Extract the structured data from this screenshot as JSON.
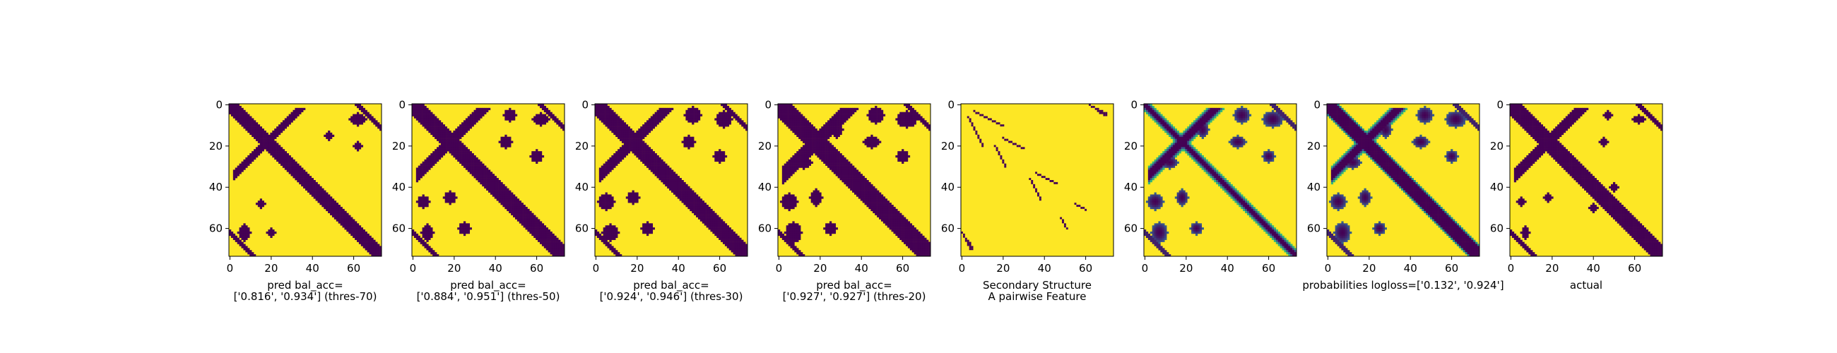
{
  "colors": {
    "background": "#ffffff",
    "present": "#fde725",
    "absent": "#440154",
    "mid_green": "#35b779",
    "mid_teal": "#21918c",
    "mid_blue": "#3b528b"
  },
  "chart_data": [
    {
      "type": "heatmap",
      "matrix_size": 74,
      "xticks": [
        0,
        20,
        40,
        60
      ],
      "yticks": [
        0,
        20,
        40,
        60
      ],
      "xlabel_lines": [
        "pred bal_acc=",
        "['0.816', '0.934'] (thres-70)"
      ],
      "style": "binary",
      "diag_width": 3.5,
      "bands": [
        {
          "o": 36,
          "s": 2,
          "e": 38,
          "w": 1.5
        }
      ],
      "blobs": [
        [
          7,
          62,
          3,
          4
        ],
        [
          62,
          7,
          4,
          3
        ],
        [
          48,
          15,
          2,
          2
        ],
        [
          15,
          48,
          2,
          2
        ],
        [
          20,
          62,
          2,
          2
        ],
        [
          62,
          20,
          2,
          2
        ]
      ],
      "side_diag": [
        10,
        30
      ]
    },
    {
      "type": "heatmap",
      "matrix_size": 74,
      "xticks": [
        0,
        20,
        40,
        60
      ],
      "yticks": [
        0,
        20,
        40,
        60
      ],
      "xlabel_lines": [
        "pred bal_acc=",
        "['0.884', '0.951'] (thres-50)"
      ],
      "style": "binary",
      "diag_width": 4,
      "bands": [
        {
          "o": 36,
          "s": 2,
          "e": 38,
          "w": 2
        },
        {
          "o": 54,
          "s": 2,
          "e": 20,
          "w": 1.8
        }
      ],
      "blobs": [
        [
          7,
          62,
          3,
          4
        ],
        [
          62,
          7,
          4,
          3
        ],
        [
          45,
          18,
          3,
          3
        ],
        [
          18,
          45,
          3,
          3
        ],
        [
          47,
          5,
          3,
          3
        ],
        [
          5,
          47,
          3,
          3
        ],
        [
          60,
          25,
          3,
          3
        ],
        [
          25,
          60,
          3,
          3
        ]
      ],
      "side_diag": [
        10,
        35
      ]
    },
    {
      "type": "heatmap",
      "matrix_size": 74,
      "xticks": [
        0,
        20,
        40,
        60
      ],
      "yticks": [
        0,
        20,
        40,
        60
      ],
      "xlabel_lines": [
        "pred bal_acc=",
        "['0.924', '0.946'] (thres-30)"
      ],
      "style": "binary",
      "diag_width": 4.5,
      "bands": [
        {
          "o": 36,
          "s": 2,
          "e": 38,
          "w": 2.5
        },
        {
          "o": 54,
          "s": 2,
          "e": 20,
          "w": 2.2
        },
        {
          "o": 70,
          "s": 2,
          "e": 5,
          "w": 1.5
        }
      ],
      "blobs": [
        [
          7,
          62,
          4,
          4
        ],
        [
          62,
          7,
          4,
          4
        ],
        [
          45,
          18,
          3,
          3
        ],
        [
          18,
          45,
          3,
          3
        ],
        [
          47,
          5,
          4,
          4
        ],
        [
          5,
          47,
          4,
          4
        ],
        [
          60,
          25,
          3,
          3
        ],
        [
          25,
          60,
          3,
          3
        ]
      ],
      "side_diag": [
        10,
        40
      ]
    },
    {
      "type": "heatmap",
      "matrix_size": 74,
      "xticks": [
        0,
        20,
        40,
        60
      ],
      "yticks": [
        0,
        20,
        40,
        60
      ],
      "xlabel_lines": [
        "pred bal_acc=",
        "['0.927', '0.927'] (thres-20)"
      ],
      "style": "binary",
      "diag_width": 5,
      "bands": [
        {
          "o": 36,
          "s": 2,
          "e": 38,
          "w": 3
        },
        {
          "o": 54,
          "s": 2,
          "e": 20,
          "w": 2.6
        },
        {
          "o": 70,
          "s": 2,
          "e": 5,
          "w": 2
        }
      ],
      "blobs": [
        [
          7,
          62,
          4,
          5
        ],
        [
          62,
          7,
          5,
          4
        ],
        [
          45,
          18,
          4,
          3
        ],
        [
          18,
          45,
          3,
          4
        ],
        [
          47,
          5,
          4,
          4
        ],
        [
          5,
          47,
          4,
          4
        ],
        [
          60,
          25,
          3,
          3
        ],
        [
          25,
          60,
          3,
          3
        ],
        [
          12,
          28,
          4,
          3
        ],
        [
          28,
          12,
          3,
          4
        ]
      ],
      "side_diag": [
        8,
        45
      ]
    },
    {
      "type": "heatmap",
      "matrix_size": 74,
      "xticks": [
        0,
        20,
        40,
        60
      ],
      "yticks": [
        0,
        20,
        40,
        60
      ],
      "xlabel_lines": [
        "Secondary Structure",
        "A pairwise Feature"
      ],
      "style": "ss",
      "segments": [
        [
          6,
          20,
          3,
          4
        ],
        [
          66,
          70,
          3,
          4
        ],
        [
          20,
          30,
          16,
          19
        ],
        [
          36,
          46,
          33,
          42
        ],
        [
          55,
          60,
          48,
          51
        ],
        [
          62,
          70,
          0,
          6
        ]
      ]
    },
    {
      "type": "heatmap",
      "matrix_size": 74,
      "xticks": [
        0,
        20,
        40,
        60
      ],
      "yticks": [
        0,
        20,
        40,
        60
      ],
      "xlabel_lines": [
        "",
        ""
      ],
      "style": "continuous",
      "diag_width": 1.5,
      "bands": [
        {
          "o": 36,
          "s": 2,
          "e": 38,
          "w": 2.5
        },
        {
          "o": 54,
          "s": 2,
          "e": 20,
          "w": 2.2
        },
        {
          "o": 70,
          "s": 2,
          "e": 5,
          "w": 2
        }
      ],
      "blobs": [
        [
          7,
          62,
          4,
          5
        ],
        [
          62,
          7,
          5,
          4
        ],
        [
          45,
          18,
          4,
          3
        ],
        [
          18,
          45,
          3,
          4
        ],
        [
          47,
          5,
          4,
          4
        ],
        [
          5,
          47,
          4,
          4
        ],
        [
          60,
          25,
          3,
          3
        ],
        [
          25,
          60,
          3,
          3
        ],
        [
          12,
          28,
          4,
          3
        ],
        [
          28,
          12,
          3,
          4
        ]
      ],
      "side_diag": [
        10,
        40
      ]
    },
    {
      "type": "heatmap",
      "matrix_size": 74,
      "xticks": [
        0,
        20,
        40,
        60
      ],
      "yticks": [
        0,
        20,
        40,
        60
      ],
      "xlabel_lines": [
        "probabilities logloss=['0.132', '0.924']",
        ""
      ],
      "style": "continuous",
      "diag_width": 4,
      "bands": [
        {
          "o": 36,
          "s": 2,
          "e": 38,
          "w": 2.5
        },
        {
          "o": 54,
          "s": 2,
          "e": 20,
          "w": 2.2
        },
        {
          "o": 70,
          "s": 2,
          "e": 5,
          "w": 2
        }
      ],
      "blobs": [
        [
          7,
          62,
          4,
          5
        ],
        [
          62,
          7,
          5,
          4
        ],
        [
          45,
          18,
          4,
          3
        ],
        [
          18,
          45,
          3,
          4
        ],
        [
          47,
          5,
          4,
          4
        ],
        [
          5,
          47,
          4,
          4
        ],
        [
          60,
          25,
          3,
          3
        ],
        [
          25,
          60,
          3,
          3
        ],
        [
          12,
          28,
          4,
          3
        ],
        [
          28,
          12,
          3,
          4
        ]
      ],
      "side_diag": [
        10,
        40
      ]
    },
    {
      "type": "heatmap",
      "matrix_size": 74,
      "xticks": [
        0,
        20,
        40,
        60
      ],
      "yticks": [
        0,
        20,
        40,
        60
      ],
      "xlabel_lines": [
        "actual",
        ""
      ],
      "style": "binary",
      "diag_width": 4,
      "bands": [
        {
          "o": 36,
          "s": 2,
          "e": 38,
          "w": 2
        },
        {
          "o": 54,
          "s": 2,
          "e": 20,
          "w": 1.5
        }
      ],
      "blobs": [
        [
          7,
          62,
          2,
          3
        ],
        [
          62,
          7,
          3,
          2
        ],
        [
          45,
          18,
          2,
          2
        ],
        [
          18,
          45,
          2,
          2
        ],
        [
          47,
          5,
          2,
          2
        ],
        [
          5,
          47,
          2,
          2
        ],
        [
          50,
          40,
          2,
          2
        ],
        [
          40,
          50,
          2,
          2
        ]
      ],
      "side_diag": [
        8,
        45
      ]
    }
  ]
}
